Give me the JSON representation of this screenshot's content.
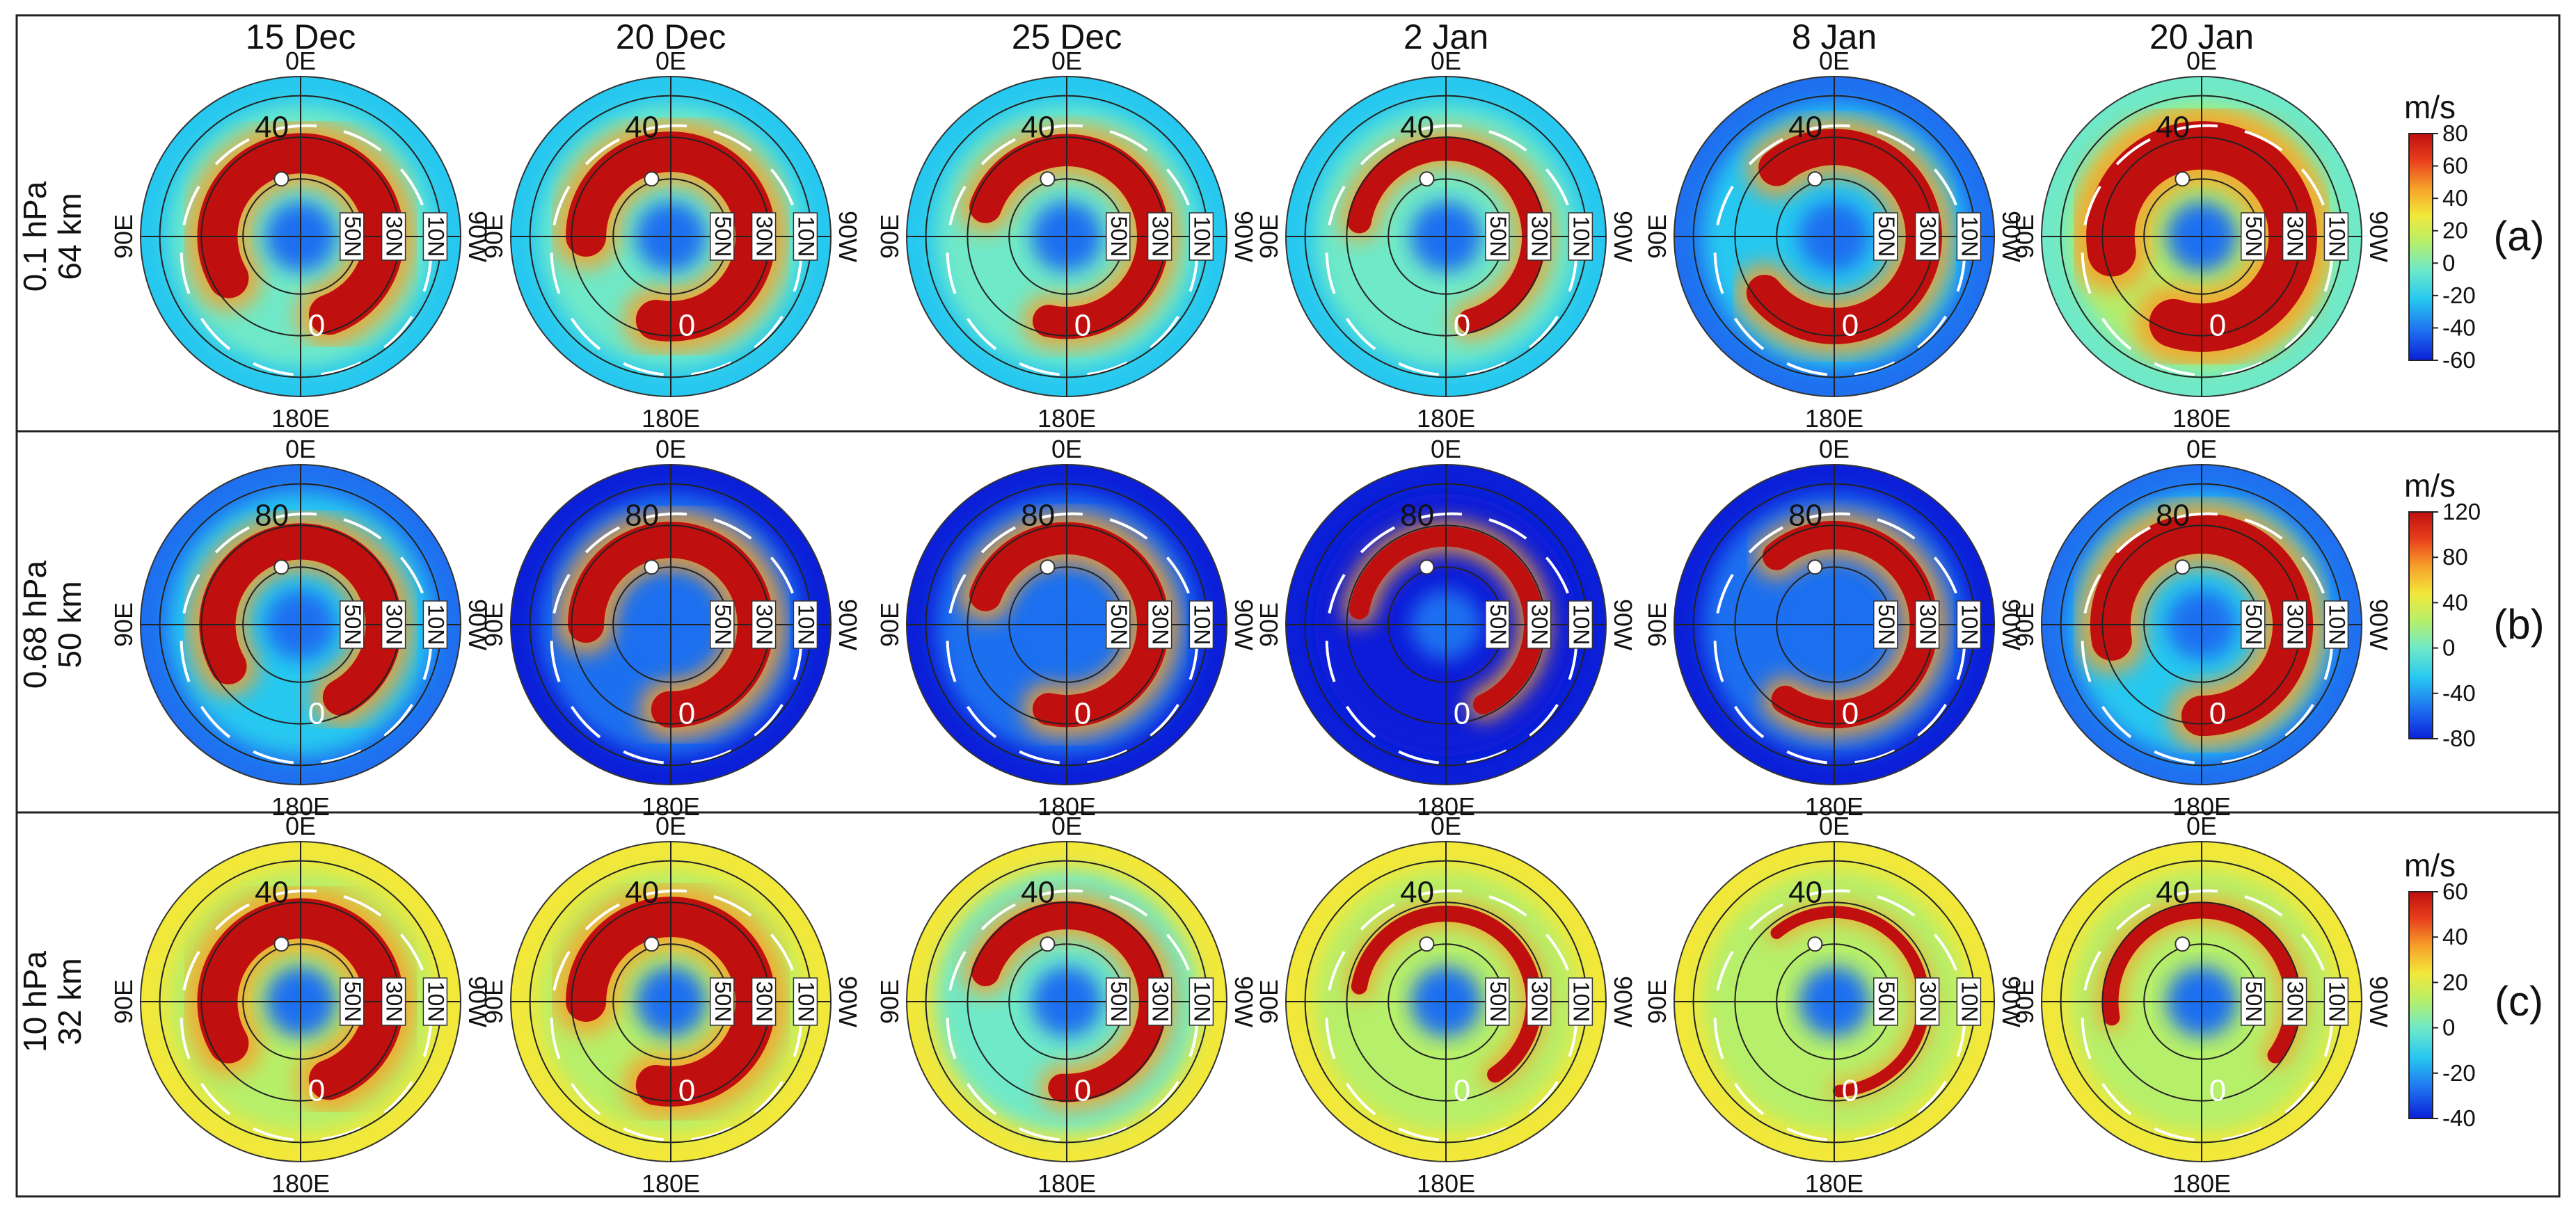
{
  "dates": [
    "15 Dec",
    "20 Dec",
    "25 Dec",
    "2 Jan",
    "8 Jan",
    "20 Jan"
  ],
  "lon_labels": {
    "top": "0E",
    "bottom": "180E",
    "left": "90E",
    "right": "90W"
  },
  "lat_labels": [
    "50N",
    "30N",
    "10N"
  ],
  "zero_contour_label": "0",
  "colors": {
    "scale": [
      "#0b1fd8",
      "#1f70f0",
      "#27c8f0",
      "#6fe9c8",
      "#b6ef6a",
      "#f2e83a",
      "#f7a02a",
      "#e8401c",
      "#c00f0f"
    ],
    "jet_outline": "#111111",
    "zero_contour": "#ffffff",
    "marker": "#ffffff"
  },
  "rows": [
    {
      "id": "a",
      "panel_letter": "(a)",
      "pressure": "0.1 hPa",
      "altitude": "64 km",
      "unit": "m/s",
      "colorbar_ticks": [
        "80",
        "60",
        "40",
        "20",
        "0",
        "-20",
        "-40",
        "-60"
      ],
      "contour_label": "40"
    },
    {
      "id": "b",
      "panel_letter": "(b)",
      "pressure": "0.68 hPa",
      "altitude": "50 km",
      "unit": "m/s",
      "colorbar_ticks": [
        "120",
        "80",
        "40",
        "0",
        "-40",
        "-80"
      ],
      "contour_label": "80"
    },
    {
      "id": "c",
      "panel_letter": "(c)",
      "pressure": "10 hPa",
      "altitude": "32 km",
      "unit": "m/s",
      "colorbar_ticks": [
        "60",
        "40",
        "20",
        "0",
        "-20",
        "-40"
      ],
      "contour_label": "40"
    }
  ]
}
